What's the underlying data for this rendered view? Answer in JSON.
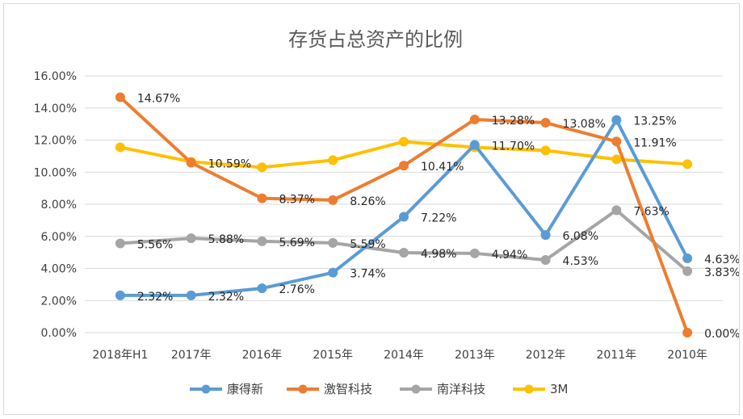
{
  "chart_data": {
    "type": "line",
    "title": "存货占总资产的比例",
    "categories": [
      "2018年H1",
      "2017年",
      "2016年",
      "2015年",
      "2014年",
      "2013年",
      "2012年",
      "2011年",
      "2010年"
    ],
    "ylim": [
      0,
      16
    ],
    "yticks": [
      "0.00%",
      "2.00%",
      "4.00%",
      "6.00%",
      "8.00%",
      "10.00%",
      "12.00%",
      "14.00%",
      "16.00%"
    ],
    "grid": true,
    "legend_position": "bottom",
    "series": [
      {
        "name": "康得新",
        "color": "#5b9bd5",
        "values": [
          2.32,
          2.32,
          2.76,
          3.74,
          7.22,
          11.7,
          6.08,
          13.25,
          4.63
        ],
        "labels": [
          "2.32%",
          "2.32%",
          "2.76%",
          "3.74%",
          "7.22%",
          "11.70%",
          "6.08%",
          "13.25%",
          "4.63%"
        ]
      },
      {
        "name": "激智科技",
        "color": "#ed7d31",
        "values": [
          14.67,
          10.59,
          8.37,
          8.26,
          10.41,
          13.28,
          13.08,
          11.91,
          0.0
        ],
        "labels": [
          "14.67%",
          "10.59%",
          "8.37%",
          "8.26%",
          "10.41%",
          "13.28%",
          "13.08%",
          "11.91%",
          "0.00%"
        ]
      },
      {
        "name": "南洋科技",
        "color": "#a5a5a5",
        "values": [
          5.56,
          5.88,
          5.69,
          5.59,
          4.98,
          4.94,
          4.53,
          7.63,
          3.83
        ],
        "labels": [
          "5.56%",
          "5.88%",
          "5.69%",
          "5.59%",
          "4.98%",
          "4.94%",
          "4.53%",
          "7.63%",
          "3.83%"
        ]
      },
      {
        "name": "3M",
        "color": "#ffc000",
        "values": [
          11.55,
          10.65,
          10.3,
          10.75,
          11.9,
          11.55,
          11.35,
          10.8,
          10.5
        ],
        "labels": []
      }
    ]
  }
}
